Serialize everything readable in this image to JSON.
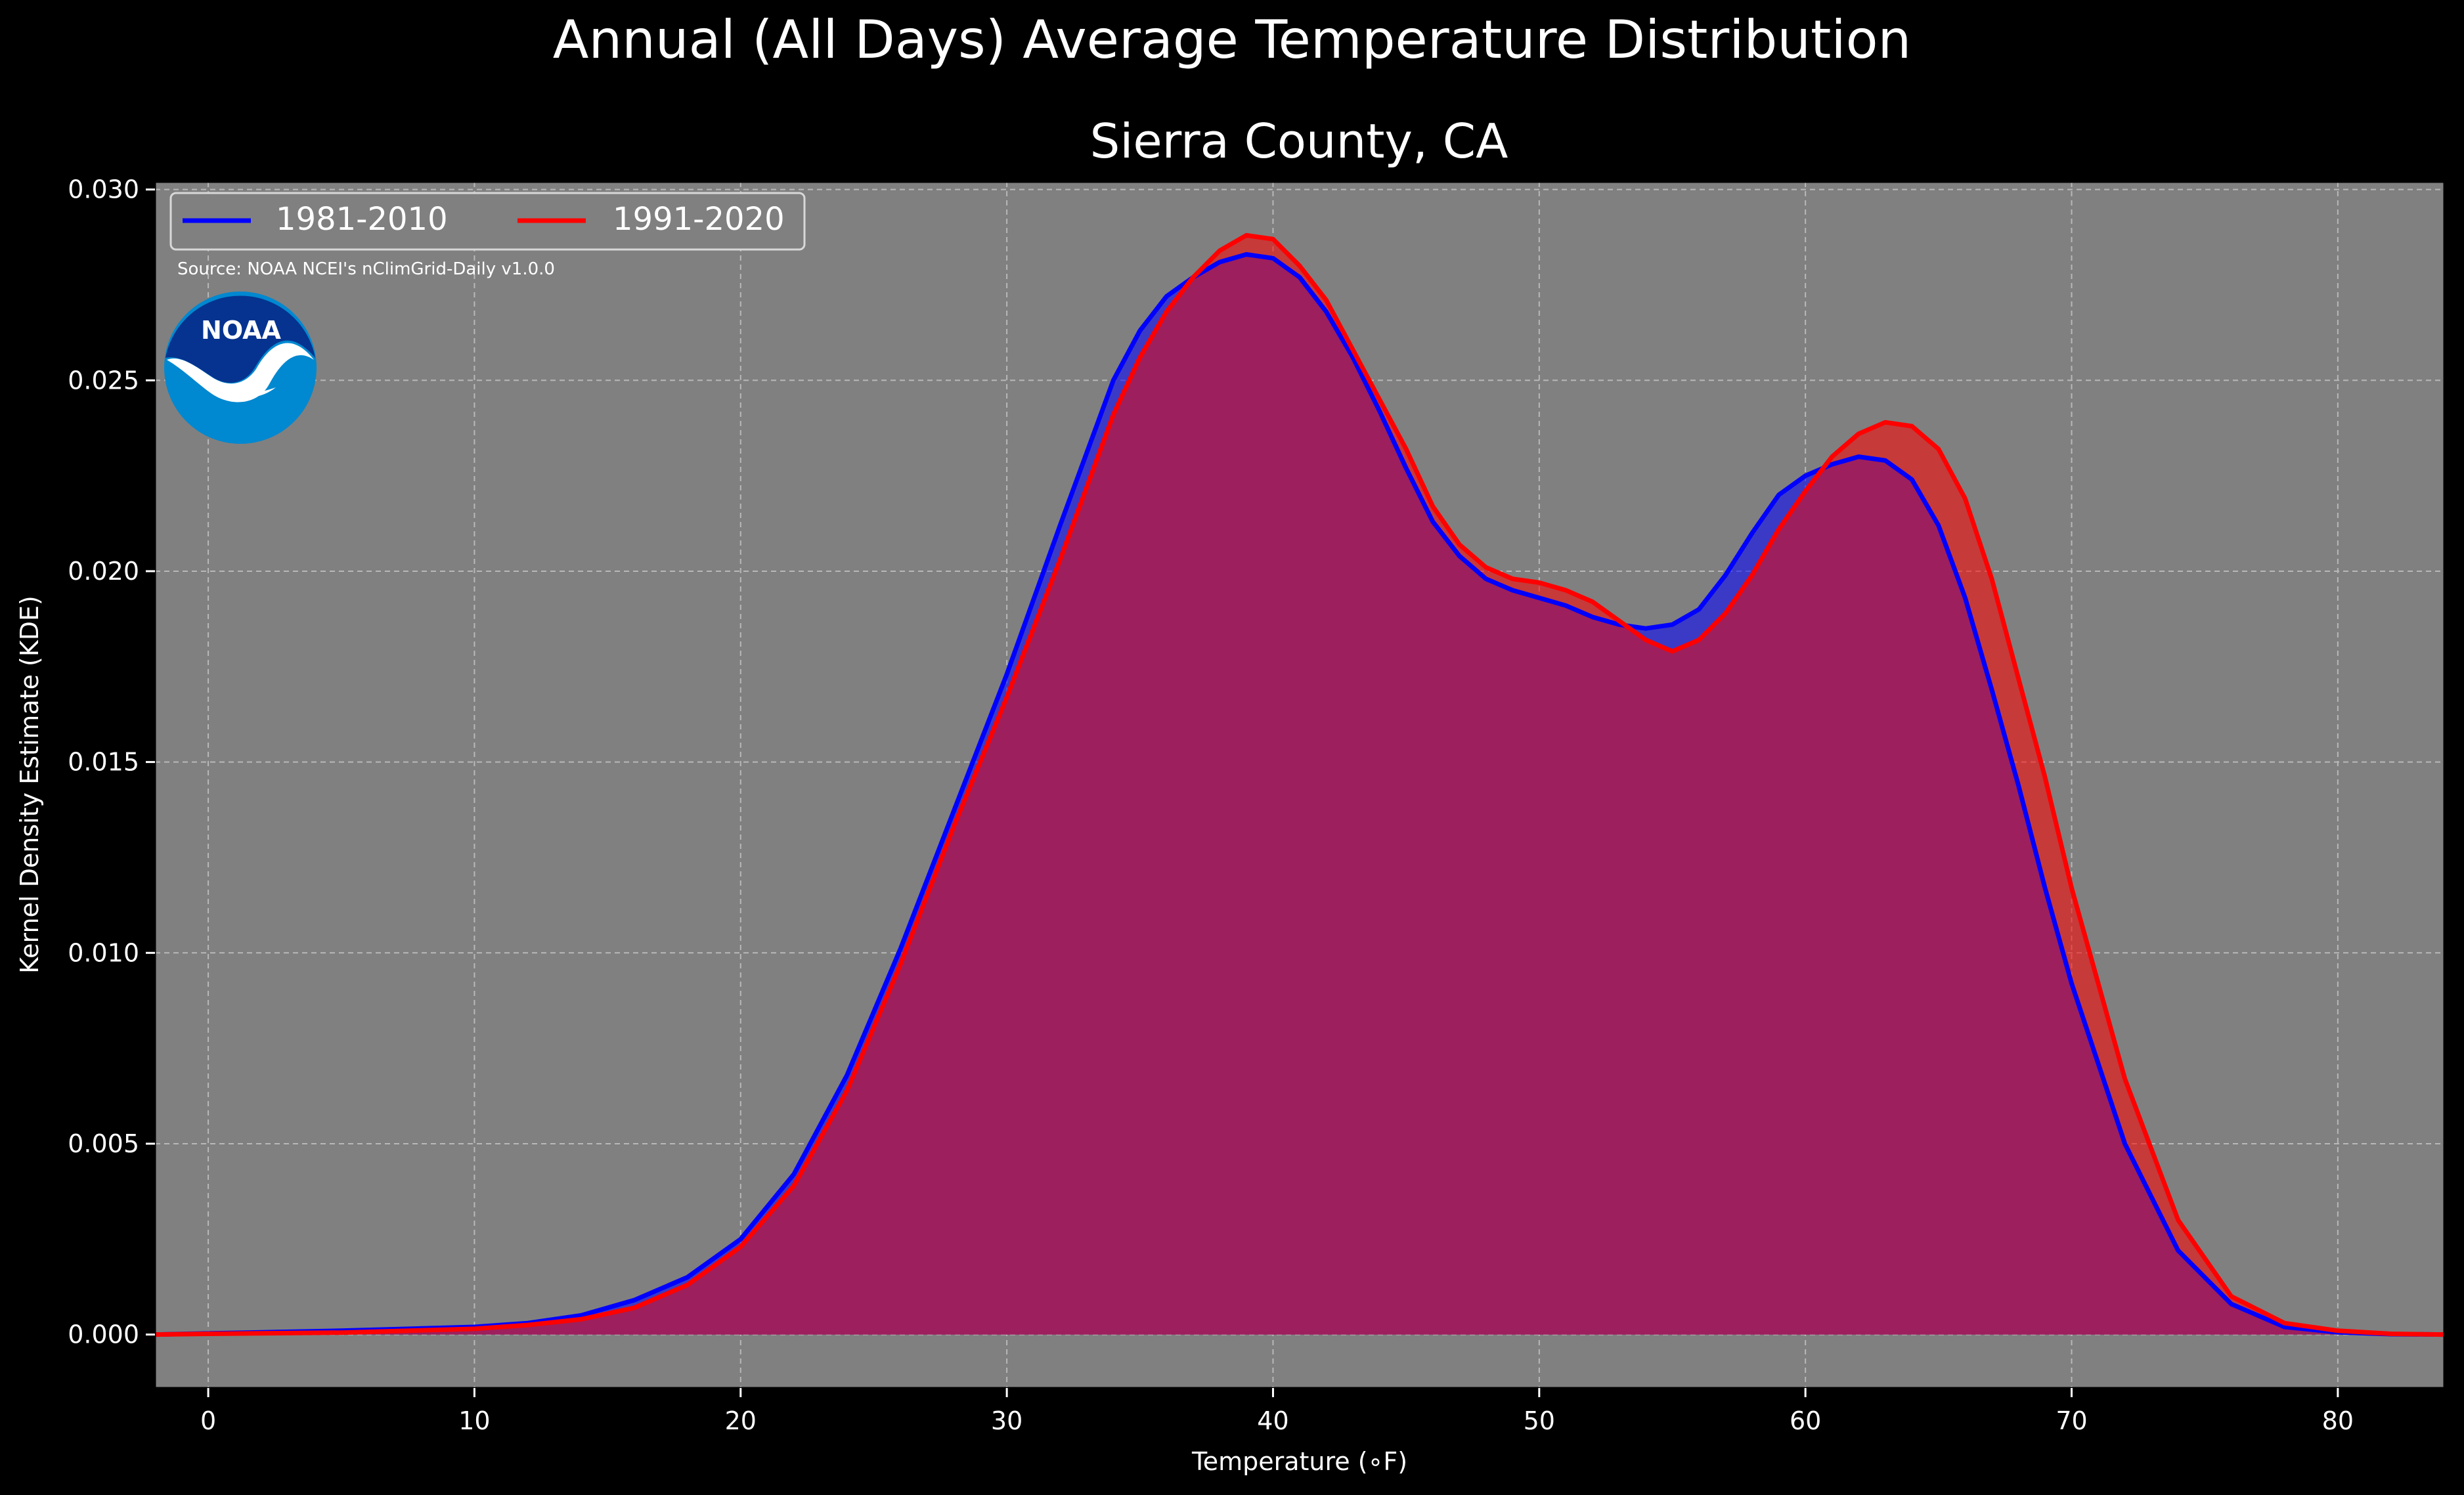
{
  "colors": {
    "figure_background": "#000000",
    "plot_background": "#808080",
    "series_1981_2010": "#0000ff",
    "series_1991_2020": "#ff0000",
    "overlap_fill": "#9e1f5d",
    "gridline": "#b8b8b8",
    "noaa_dark_blue": "#06338f",
    "noaa_light_blue": "#0088d0"
  },
  "logo": {
    "icon": "noaa-logo-icon",
    "text": "NOAA"
  },
  "chart_data": {
    "type": "area",
    "suptitle": "Annual (All Days) Average Temperature Distribution",
    "title": "Sierra County, CA",
    "xlabel": "Temperature (∘F)",
    "ylabel": "Kernel Density Estimate (KDE)",
    "source_note": "Source: NOAA NCEI's nClimGrid-Daily v1.0.0",
    "xlim": [
      -2,
      84
    ],
    "ylim": [
      -0.0014,
      0.0302
    ],
    "xticks": [
      0,
      10,
      20,
      30,
      40,
      50,
      60,
      70,
      80
    ],
    "xtick_labels": [
      "0",
      "10",
      "20",
      "30",
      "40",
      "50",
      "60",
      "70",
      "80"
    ],
    "yticks": [
      0.0,
      0.005,
      0.01,
      0.015,
      0.02,
      0.025,
      0.03
    ],
    "ytick_labels": [
      "0.000",
      "0.005",
      "0.010",
      "0.015",
      "0.020",
      "0.025",
      "0.030"
    ],
    "grid": true,
    "legend_placement": "upper-left",
    "x": [
      -2,
      0,
      5,
      10,
      12,
      14,
      16,
      18,
      20,
      22,
      24,
      26,
      28,
      30,
      32,
      34,
      35,
      36,
      37,
      38,
      39,
      40,
      41,
      42,
      43,
      44,
      45,
      46,
      47,
      48,
      49,
      50,
      51,
      52,
      53,
      54,
      55,
      56,
      57,
      58,
      59,
      60,
      61,
      62,
      63,
      64,
      65,
      66,
      67,
      68,
      69,
      70,
      72,
      74,
      76,
      78,
      80,
      82,
      84
    ],
    "series": [
      {
        "name": "1981-2010",
        "values": [
          0,
          3e-05,
          0.0001,
          0.0002,
          0.0003,
          0.0005,
          0.0009,
          0.0015,
          0.0025,
          0.0042,
          0.0068,
          0.0101,
          0.0137,
          0.0173,
          0.0212,
          0.025,
          0.0263,
          0.0272,
          0.0277,
          0.0281,
          0.0283,
          0.0282,
          0.0277,
          0.0268,
          0.0256,
          0.0242,
          0.0227,
          0.0213,
          0.0204,
          0.0198,
          0.0195,
          0.0193,
          0.0191,
          0.0188,
          0.0186,
          0.0185,
          0.0186,
          0.019,
          0.0199,
          0.021,
          0.022,
          0.0225,
          0.0228,
          0.023,
          0.0229,
          0.0224,
          0.0212,
          0.0193,
          0.0169,
          0.0144,
          0.0117,
          0.0092,
          0.005,
          0.0022,
          0.0008,
          0.0002,
          6e-05,
          1e-05,
          0
        ]
      },
      {
        "name": "1991-2020",
        "values": [
          0,
          2e-05,
          5e-05,
          0.00015,
          0.00025,
          0.0004,
          0.0007,
          0.0013,
          0.0023,
          0.0039,
          0.0064,
          0.0097,
          0.0133,
          0.0167,
          0.0203,
          0.0241,
          0.0256,
          0.0268,
          0.0277,
          0.0284,
          0.0288,
          0.0287,
          0.028,
          0.0271,
          0.0258,
          0.0245,
          0.0232,
          0.0217,
          0.0207,
          0.0201,
          0.0198,
          0.0197,
          0.0195,
          0.0192,
          0.0187,
          0.0182,
          0.0179,
          0.0182,
          0.0189,
          0.0199,
          0.0211,
          0.0221,
          0.023,
          0.0236,
          0.0239,
          0.0238,
          0.0232,
          0.0219,
          0.0198,
          0.0172,
          0.0146,
          0.0117,
          0.0067,
          0.003,
          0.001,
          0.0003,
          0.0001,
          2e-05,
          0
        ]
      }
    ]
  }
}
